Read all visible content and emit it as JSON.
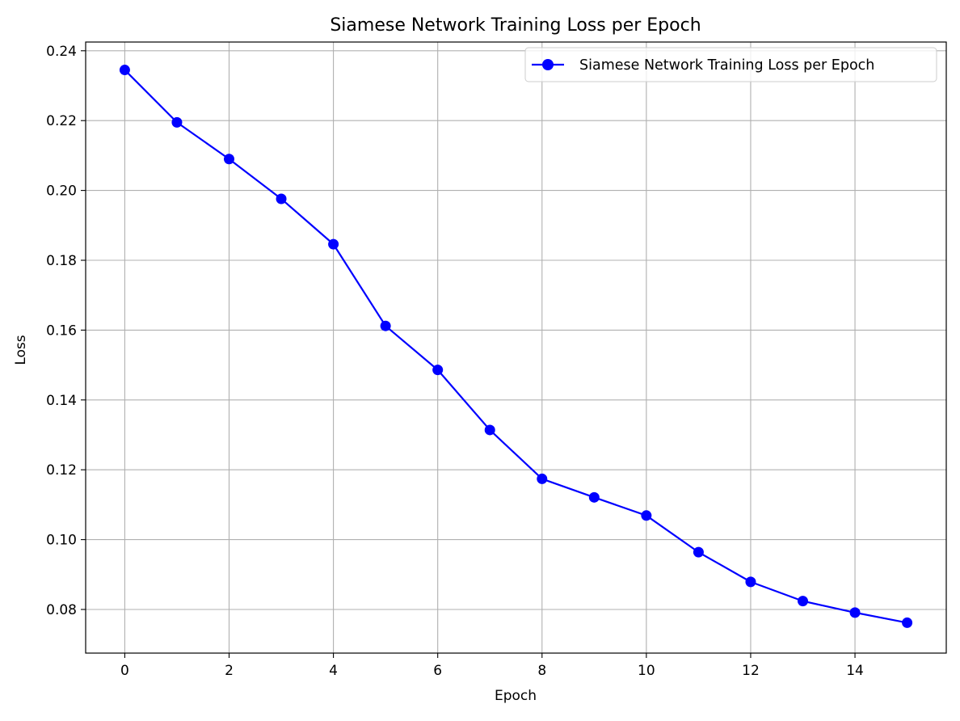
{
  "chart_data": {
    "type": "line",
    "title": "Siamese Network Training Loss per Epoch",
    "xlabel": "Epoch",
    "ylabel": "Loss",
    "xlim": [
      -0.75,
      15.75
    ],
    "ylim": [
      0.0675,
      0.2425
    ],
    "xticks": [
      0,
      2,
      4,
      6,
      8,
      10,
      12,
      14
    ],
    "xtick_labels": [
      "0",
      "2",
      "4",
      "6",
      "8",
      "10",
      "12",
      "14"
    ],
    "yticks": [
      0.08,
      0.1,
      0.12,
      0.14,
      0.16,
      0.18,
      0.2,
      0.22,
      0.24
    ],
    "ytick_labels": [
      "0.08",
      "0.10",
      "0.12",
      "0.14",
      "0.16",
      "0.18",
      "0.20",
      "0.22",
      "0.24"
    ],
    "grid": true,
    "legend_position": "top-right",
    "series": [
      {
        "name": "Siamese Network Training Loss per Epoch",
        "color": "#0000ff",
        "marker": "circle",
        "x": [
          0,
          1,
          2,
          3,
          4,
          5,
          6,
          7,
          8,
          9,
          10,
          11,
          12,
          13,
          14,
          15
        ],
        "y": [
          0.2345,
          0.2195,
          0.209,
          0.1976,
          0.1846,
          0.1612,
          0.1486,
          0.1314,
          0.1174,
          0.1121,
          0.1069,
          0.0964,
          0.0879,
          0.0824,
          0.0791,
          0.0762
        ]
      }
    ]
  }
}
